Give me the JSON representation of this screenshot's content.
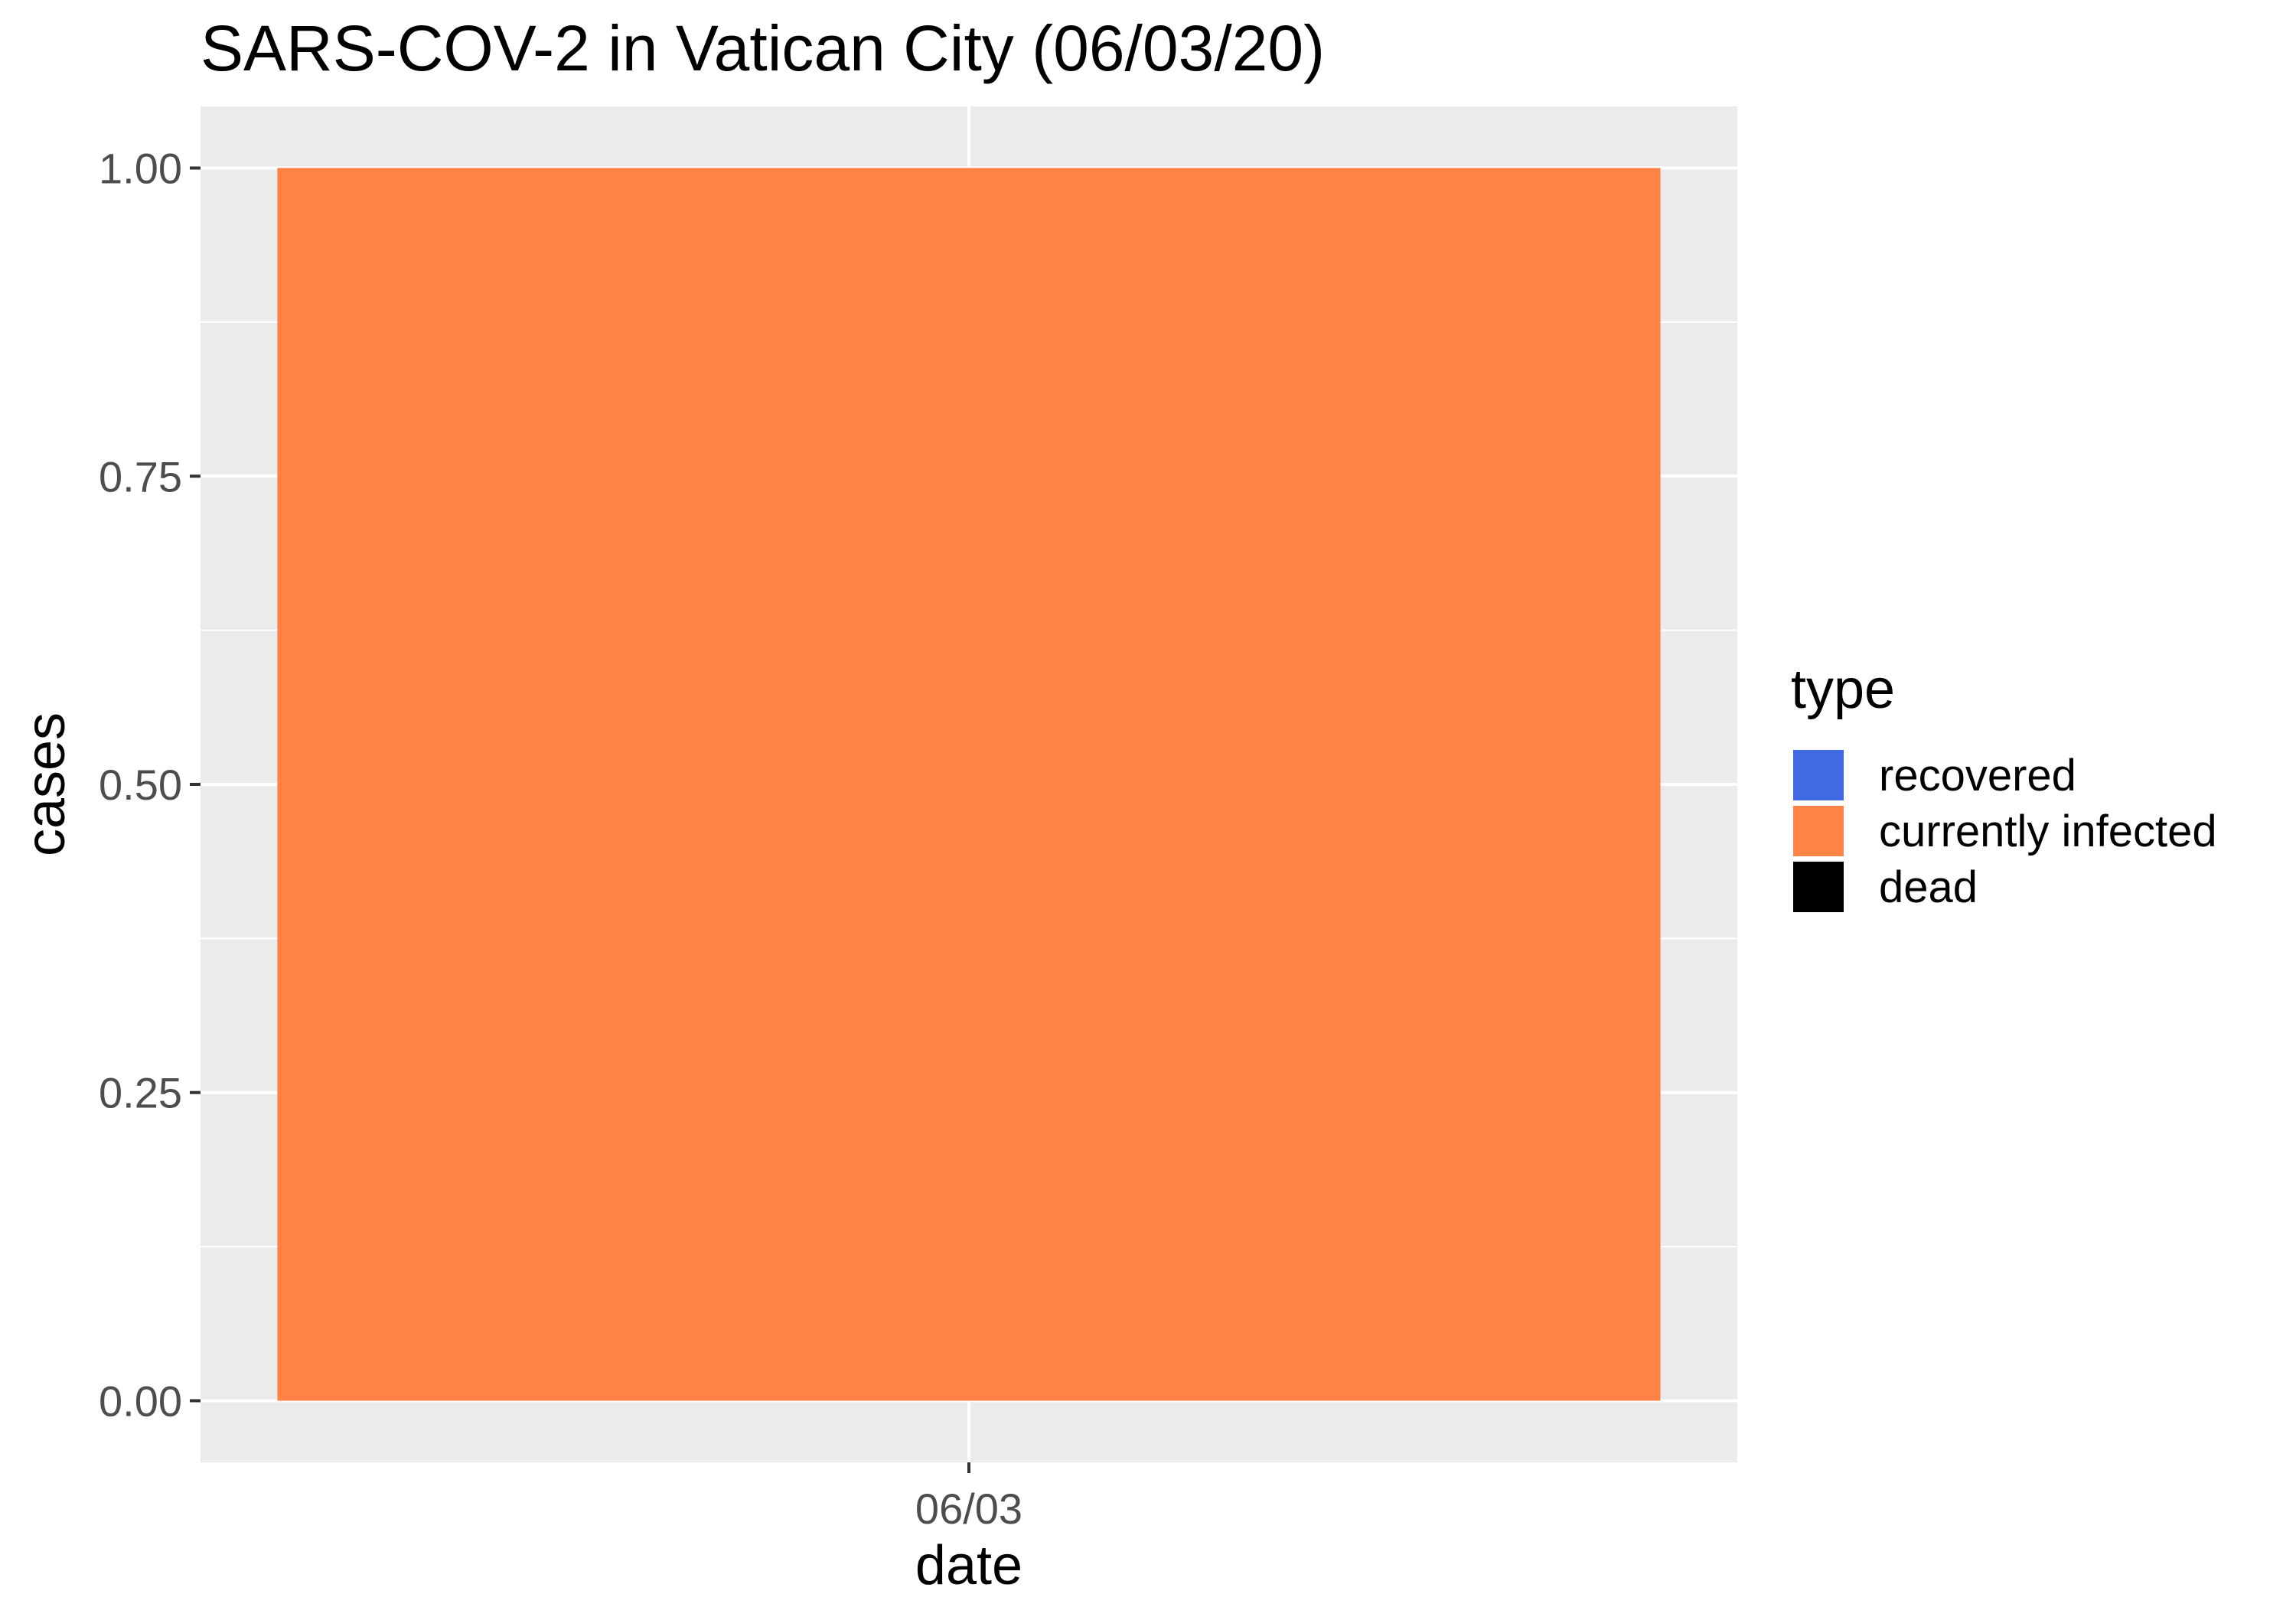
{
  "chart_data": {
    "type": "bar",
    "title": "SARS-COV-2 in Vatican City (06/03/20)",
    "xlabel": "date",
    "ylabel": "cases",
    "categories": [
      "06/03"
    ],
    "series": [
      {
        "name": "recovered",
        "color": "#4169E1",
        "values": [
          0
        ]
      },
      {
        "name": "currently infected",
        "color": "#FF8247",
        "values": [
          1
        ]
      },
      {
        "name": "dead",
        "color": "#000000",
        "values": [
          0
        ]
      }
    ],
    "stacked": true,
    "ylim": [
      -0.05,
      1.05
    ],
    "yticks": [
      0.0,
      0.25,
      0.5,
      0.75,
      1.0
    ],
    "ytick_labels": [
      "0.00",
      "0.25",
      "0.50",
      "0.75",
      "1.00"
    ],
    "legend": {
      "title": "type",
      "position": "right"
    },
    "panel_background": "#EBEBEB",
    "grid": true
  }
}
